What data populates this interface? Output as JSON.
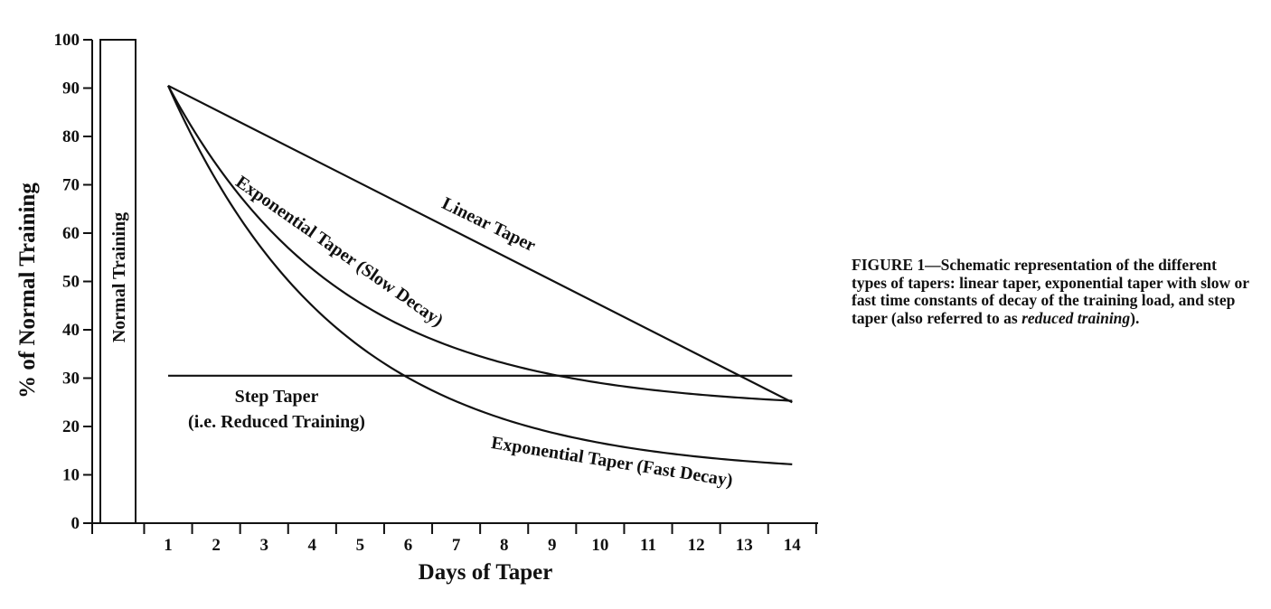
{
  "chart_data": {
    "type": "line",
    "title": "",
    "xlabel": "Days of Taper",
    "ylabel": "% of Normal Training",
    "xlim": [
      0,
      14
    ],
    "ylim": [
      0,
      100
    ],
    "x_ticks": [
      "1",
      "2",
      "3",
      "4",
      "5",
      "6",
      "7",
      "8",
      "9",
      "10",
      "11",
      "12",
      "13",
      "14"
    ],
    "y_ticks": [
      "0",
      "10",
      "20",
      "30",
      "40",
      "50",
      "60",
      "70",
      "80",
      "90",
      "100"
    ],
    "grid": false,
    "legend": "none",
    "normal_training": {
      "label": "Normal Training",
      "value": 100
    },
    "series": [
      {
        "name": "Linear Taper",
        "x": [
          1,
          14
        ],
        "y": [
          90.5,
          25
        ]
      },
      {
        "name": "Exponential Taper (Slow Decay)",
        "function": "exp_decay",
        "start_x": 1,
        "start_y": 90.5,
        "asymptote": 23.5,
        "tau": 3.6,
        "end_x": 14
      },
      {
        "name": "Exponential Taper (Fast Decay)",
        "function": "exp_decay",
        "start_x": 1,
        "start_y": 90.5,
        "asymptote": 10,
        "tau": 3.6,
        "end_x": 14
      },
      {
        "name": "Step Taper",
        "sub_label": "(i.e. Reduced Training)",
        "x": [
          1,
          14
        ],
        "y": [
          30.5,
          30.5
        ]
      }
    ],
    "colors": {
      "ink": "#111111",
      "background": "#ffffff"
    }
  },
  "caption": {
    "lead": "FIGURE 1—Schematic representation of the different types of tapers: linear taper, exponential taper with slow or fast time constants of decay of the training load, and step taper (also referred to as ",
    "emphasis": "reduced training",
    "tail": ")."
  }
}
